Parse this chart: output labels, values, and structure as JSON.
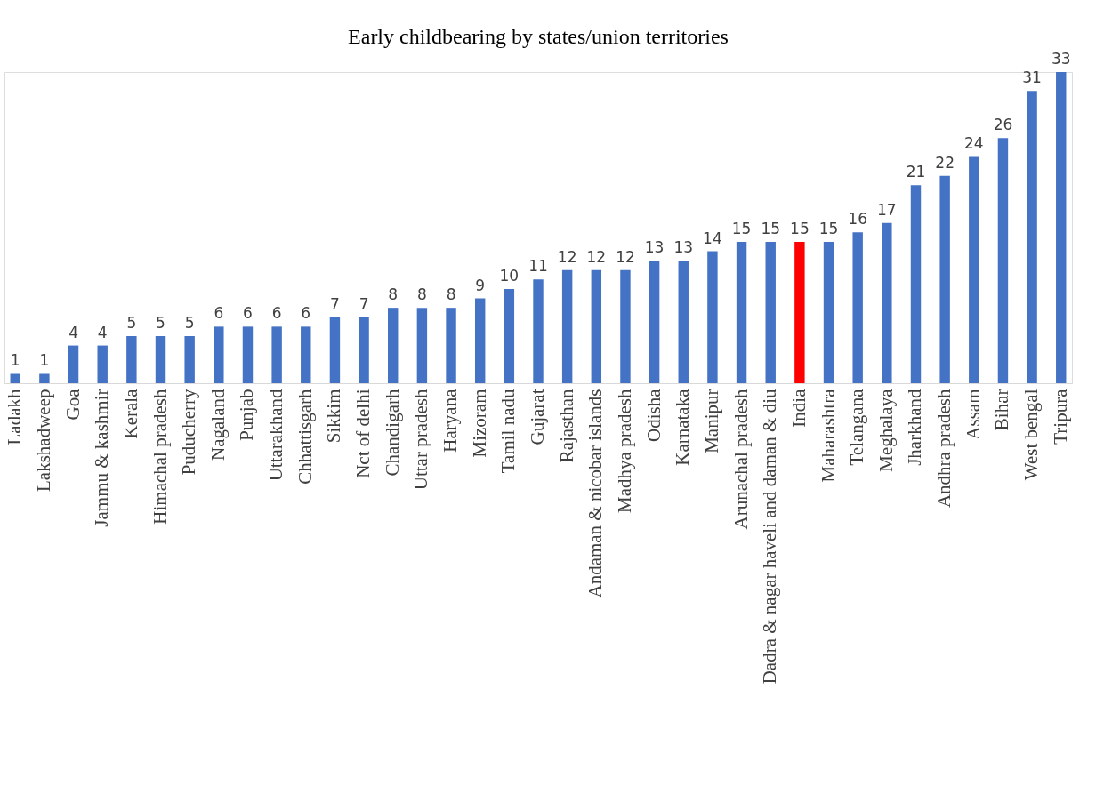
{
  "chart_data": {
    "type": "bar",
    "title": "Early childbearing by states/union territories",
    "categories": [
      "Ladakh",
      "Lakshadweep",
      "Goa",
      "Jammu & kashmir",
      "Kerala",
      "Himachal pradesh",
      "Puducherry",
      "Nagaland",
      "Punjab",
      "Uttarakhand",
      "Chhattisgarh",
      "Sikkim",
      "Nct of delhi",
      "Chandigarh",
      "Uttar pradesh",
      "Haryana",
      "Mizoram",
      "Tamil nadu",
      "Gujarat",
      "Rajasthan",
      "Andaman & nicobar islands",
      "Madhya pradesh",
      "Odisha",
      "Karnataka",
      "Manipur",
      "Arunachal pradesh",
      "Dadra & nagar haveli and daman & diu",
      "India",
      "Maharashtra",
      "Telangana",
      "Meghalaya",
      "Jharkhand",
      "Andhra pradesh",
      "Assam",
      "Bihar",
      "West bengal",
      "Tripura"
    ],
    "values": [
      1,
      1,
      4,
      4,
      5,
      5,
      5,
      6,
      6,
      6,
      6,
      7,
      7,
      8,
      8,
      8,
      9,
      10,
      11,
      12,
      12,
      12,
      13,
      13,
      14,
      15,
      15,
      15,
      15,
      16,
      17,
      21,
      22,
      24,
      26,
      31,
      33
    ],
    "colors": [
      "#4472c4",
      "#4472c4",
      "#4472c4",
      "#4472c4",
      "#4472c4",
      "#4472c4",
      "#4472c4",
      "#4472c4",
      "#4472c4",
      "#4472c4",
      "#4472c4",
      "#4472c4",
      "#4472c4",
      "#4472c4",
      "#4472c4",
      "#4472c4",
      "#4472c4",
      "#4472c4",
      "#4472c4",
      "#4472c4",
      "#4472c4",
      "#4472c4",
      "#4472c4",
      "#4472c4",
      "#4472c4",
      "#4472c4",
      "#4472c4",
      "#ff0000",
      "#4472c4",
      "#4472c4",
      "#4472c4",
      "#4472c4",
      "#4472c4",
      "#4472c4",
      "#4472c4",
      "#4472c4",
      "#4472c4"
    ],
    "data_labels": true
  }
}
